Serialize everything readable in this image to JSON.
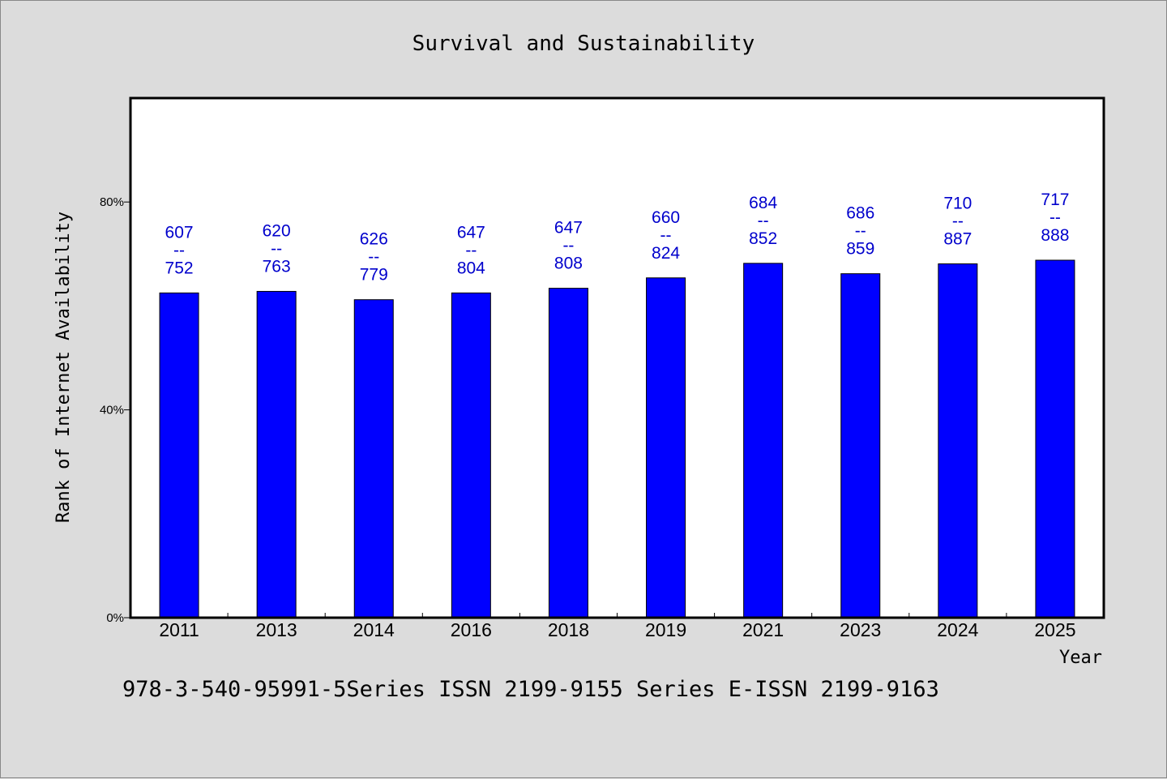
{
  "chart_data": {
    "type": "bar",
    "title": "Survival and Sustainability",
    "xlabel": "Year",
    "ylabel": "Rank of Internet Availability",
    "categories": [
      "2011",
      "2013",
      "2014",
      "2016",
      "2018",
      "2019",
      "2021",
      "2023",
      "2024",
      "2025"
    ],
    "values": [
      62.5,
      62.8,
      61.2,
      62.5,
      63.4,
      65.4,
      68.2,
      66.2,
      68.1,
      68.8
    ],
    "data_labels": [
      {
        "top": "607",
        "mid": "--",
        "bottom": "752"
      },
      {
        "top": "620",
        "mid": "--",
        "bottom": "763"
      },
      {
        "top": "626",
        "mid": "--",
        "bottom": "779"
      },
      {
        "top": "647",
        "mid": "--",
        "bottom": "804"
      },
      {
        "top": "647",
        "mid": "--",
        "bottom": "808"
      },
      {
        "top": "660",
        "mid": "--",
        "bottom": "824"
      },
      {
        "top": "684",
        "mid": "--",
        "bottom": "852"
      },
      {
        "top": "686",
        "mid": "--",
        "bottom": "859"
      },
      {
        "top": "710",
        "mid": "--",
        "bottom": "887"
      },
      {
        "top": "717",
        "mid": "--",
        "bottom": "888"
      }
    ],
    "y_ticks": [
      "0%",
      "40%",
      "80%"
    ],
    "y_tick_values": [
      0,
      40,
      80
    ],
    "ylim": [
      0,
      100
    ],
    "grid": false,
    "legend": "none",
    "colors": {
      "bar": "#0000ff",
      "data_label": "#0000cc",
      "background": "#dcdcdc",
      "plot_background": "#ffffff"
    }
  },
  "footer": {
    "text": "978-3-540-95991-5Series ISSN 2199-9155 Series E-ISSN 2199-9163"
  }
}
